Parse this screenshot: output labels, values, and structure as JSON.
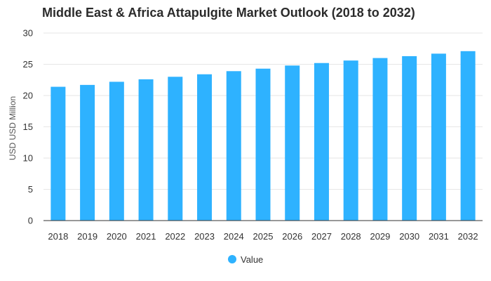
{
  "chart_data": {
    "type": "bar",
    "title": "Middle East & Africa Attapulgite Market Outlook (2018 to 2032)",
    "xlabel": "",
    "ylabel": "USD USD Million",
    "categories": [
      "2018",
      "2019",
      "2020",
      "2021",
      "2022",
      "2023",
      "2024",
      "2025",
      "2026",
      "2027",
      "2028",
      "2029",
      "2030",
      "2031",
      "2032"
    ],
    "series": [
      {
        "name": "Value",
        "color": "#2EB2FF",
        "values": [
          21.4,
          21.7,
          22.2,
          22.6,
          23.0,
          23.4,
          23.9,
          24.3,
          24.8,
          25.2,
          25.6,
          26.0,
          26.3,
          26.7,
          27.1
        ]
      }
    ],
    "ylim": [
      0,
      30
    ],
    "yticks": [
      0,
      5,
      10,
      15,
      20,
      25,
      30
    ],
    "grid": true,
    "legend_position": "bottom-center"
  }
}
